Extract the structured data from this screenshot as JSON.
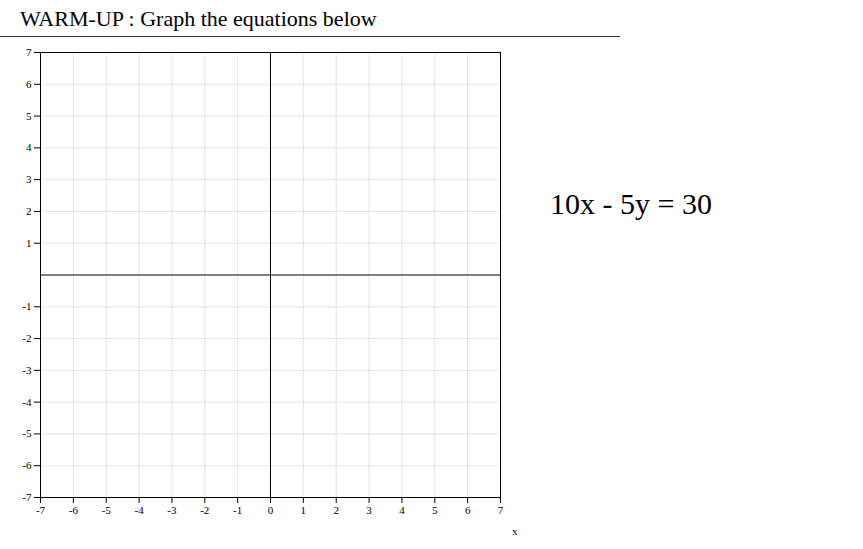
{
  "chart_data": {
    "type": "coordinate_plane",
    "title": "WARM-UP :  Graph the equations below",
    "annotation": "10x - 5y = 30",
    "xlabel": "x",
    "xlim": [
      -7,
      7
    ],
    "ylim": [
      -7,
      7
    ],
    "xticks": [
      -7,
      -6,
      -5,
      -4,
      -3,
      -2,
      -1,
      0,
      1,
      2,
      3,
      4,
      5,
      6,
      7
    ],
    "yticks": [
      -7,
      -6,
      -5,
      -4,
      -3,
      -2,
      -1,
      1,
      2,
      3,
      4,
      5,
      6,
      7
    ],
    "grid": true
  }
}
